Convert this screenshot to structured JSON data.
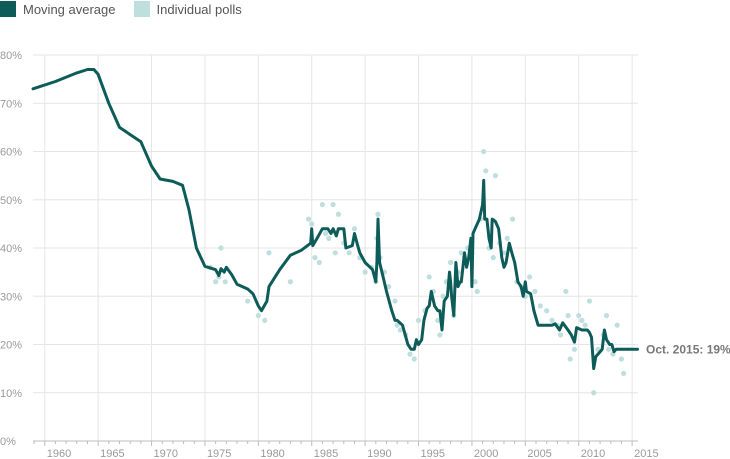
{
  "colors": {
    "line": "#0d5c5a",
    "points": "#bfdede",
    "grid": "#e6e6e6",
    "axis": "#bdbdbd",
    "tick_text": "#9a9a9a",
    "annotation": "#777777"
  },
  "chart_data": {
    "type": "line",
    "title": "",
    "xlabel": "",
    "ylabel": "",
    "xlim": [
      1958.9,
      1959.9
    ],
    "x_range": [
      1958.9,
      2015.5
    ],
    "ylim": [
      0,
      80
    ],
    "grid": true,
    "legend_placement": "top-left",
    "legend": [
      {
        "label": "Moving average",
        "color": "#0d5c5a"
      },
      {
        "label": "Individual polls",
        "color": "#bfdede"
      }
    ],
    "x_tick_labels": [
      "1960",
      "1965",
      "1970",
      "1975",
      "1980",
      "1985",
      "1990",
      "1995",
      "2000",
      "2005",
      "2010",
      "2015"
    ],
    "x_ticks": [
      1960,
      1965,
      1970,
      1975,
      1980,
      1985,
      1990,
      1995,
      2000,
      2005,
      2010,
      2015
    ],
    "y_tick_labels": [
      "0%",
      "10%",
      "20%",
      "30%",
      "40%",
      "50%",
      "60%",
      "70%",
      "80%"
    ],
    "y_ticks": [
      0,
      10,
      20,
      30,
      40,
      50,
      60,
      70,
      80
    ],
    "annotation": {
      "text": "Oct. 2015: 19%",
      "x": 2015.8,
      "y": 19
    },
    "series": [
      {
        "name": "Moving average",
        "points": [
          [
            1958.9,
            73
          ],
          [
            1961,
            74.5
          ],
          [
            1963,
            76.3
          ],
          [
            1964,
            77
          ],
          [
            1964.6,
            77
          ],
          [
            1965,
            76
          ],
          [
            1966,
            70
          ],
          [
            1967,
            65
          ],
          [
            1968,
            63.5
          ],
          [
            1969,
            62
          ],
          [
            1970,
            57
          ],
          [
            1970.8,
            54.3
          ],
          [
            1972,
            53.8
          ],
          [
            1972.9,
            53
          ],
          [
            1973.5,
            48
          ],
          [
            1974.2,
            40
          ],
          [
            1975,
            36.2
          ],
          [
            1976,
            35.5
          ],
          [
            1976.3,
            34.3
          ],
          [
            1976.5,
            35.7
          ],
          [
            1976.8,
            35
          ],
          [
            1977,
            36
          ],
          [
            1977.5,
            34.5
          ],
          [
            1978,
            32.5
          ],
          [
            1979,
            31.5
          ],
          [
            1979.5,
            30.5
          ],
          [
            1980,
            28
          ],
          [
            1980.3,
            27
          ],
          [
            1980.8,
            29
          ],
          [
            1981,
            32
          ],
          [
            1982,
            35.5
          ],
          [
            1983,
            38.5
          ],
          [
            1984,
            39.5
          ],
          [
            1984.9,
            41
          ],
          [
            1985,
            44
          ],
          [
            1985.1,
            40.5
          ],
          [
            1985.5,
            42
          ],
          [
            1986,
            44
          ],
          [
            1986.5,
            44
          ],
          [
            1986.8,
            43
          ],
          [
            1987,
            44
          ],
          [
            1987.3,
            42.5
          ],
          [
            1987.5,
            44
          ],
          [
            1988,
            44
          ],
          [
            1988.2,
            40
          ],
          [
            1988.8,
            40.5
          ],
          [
            1989,
            43
          ],
          [
            1989.3,
            40.5
          ],
          [
            1989.5,
            39
          ],
          [
            1990,
            37
          ],
          [
            1990.7,
            35.5
          ],
          [
            1991,
            33
          ],
          [
            1991.1,
            37
          ],
          [
            1991.2,
            46
          ],
          [
            1991.35,
            37
          ],
          [
            1991.6,
            34.8
          ],
          [
            1992,
            31
          ],
          [
            1992.5,
            27
          ],
          [
            1992.8,
            25
          ],
          [
            1993,
            25
          ],
          [
            1993.5,
            24
          ],
          [
            1994,
            20
          ],
          [
            1994.3,
            19
          ],
          [
            1994.6,
            19
          ],
          [
            1994.8,
            21
          ],
          [
            1995,
            20
          ],
          [
            1995.3,
            21
          ],
          [
            1995.5,
            25
          ],
          [
            1995.8,
            27.5
          ],
          [
            1996,
            28
          ],
          [
            1996.2,
            31
          ],
          [
            1996.5,
            28
          ],
          [
            1996.8,
            27
          ],
          [
            1997,
            27
          ],
          [
            1997.2,
            23
          ],
          [
            1997.4,
            29
          ],
          [
            1997.7,
            30
          ],
          [
            1997.9,
            35
          ],
          [
            1998,
            33
          ],
          [
            1998.1,
            30
          ],
          [
            1998.3,
            26
          ],
          [
            1998.5,
            37
          ],
          [
            1998.7,
            32
          ],
          [
            1998.9,
            33
          ],
          [
            1999,
            33
          ],
          [
            1999.3,
            39
          ],
          [
            1999.5,
            36
          ],
          [
            1999.7,
            38
          ],
          [
            1999.9,
            42
          ],
          [
            2000,
            32
          ],
          [
            2000.1,
            43
          ],
          [
            2000.3,
            44
          ],
          [
            2000.7,
            46
          ],
          [
            2001,
            49
          ],
          [
            2001.1,
            54
          ],
          [
            2001.2,
            46
          ],
          [
            2001.4,
            46
          ],
          [
            2001.6,
            42
          ],
          [
            2001.8,
            40
          ],
          [
            2001.9,
            46
          ],
          [
            2002.2,
            45.5
          ],
          [
            2002.5,
            44
          ],
          [
            2002.8,
            38
          ],
          [
            2003,
            36
          ],
          [
            2003.2,
            37
          ],
          [
            2003.5,
            41
          ],
          [
            2003.8,
            38.5
          ],
          [
            2004,
            37
          ],
          [
            2004.3,
            33
          ],
          [
            2004.6,
            32
          ],
          [
            2004.8,
            30
          ],
          [
            2005,
            33
          ],
          [
            2005.1,
            31
          ],
          [
            2005.5,
            30.5
          ],
          [
            2005.8,
            27
          ],
          [
            2006.2,
            24
          ],
          [
            2006.8,
            24
          ],
          [
            2007.5,
            24
          ],
          [
            2007.8,
            24.3
          ],
          [
            2008.2,
            23
          ],
          [
            2008.5,
            24.5
          ],
          [
            2009,
            23
          ],
          [
            2009.3,
            22
          ],
          [
            2009.6,
            20.5
          ],
          [
            2009.8,
            23.5
          ],
          [
            2010.3,
            23
          ],
          [
            2010.8,
            23
          ],
          [
            2011,
            22.5
          ],
          [
            2011.2,
            21.5
          ],
          [
            2011.4,
            15
          ],
          [
            2011.6,
            17.5
          ],
          [
            2012,
            18.5
          ],
          [
            2012.2,
            19
          ],
          [
            2012.4,
            23
          ],
          [
            2012.6,
            21
          ],
          [
            2012.9,
            20
          ],
          [
            2013.1,
            20
          ],
          [
            2013.3,
            18.5
          ],
          [
            2013.5,
            19
          ],
          [
            2014,
            19
          ],
          [
            2014.5,
            19
          ],
          [
            2015,
            19
          ],
          [
            2015.5,
            19
          ]
        ]
      },
      {
        "name": "Individual polls",
        "points": [
          [
            1975.5,
            36
          ],
          [
            1976,
            33
          ],
          [
            1976.3,
            34
          ],
          [
            1976.5,
            40
          ],
          [
            1976.9,
            33
          ],
          [
            1979,
            29
          ],
          [
            1980,
            26
          ],
          [
            1980.6,
            25
          ],
          [
            1981,
            39
          ],
          [
            1983,
            33
          ],
          [
            1984.7,
            46
          ],
          [
            1985,
            45
          ],
          [
            1985.3,
            38
          ],
          [
            1985.7,
            37
          ],
          [
            1986,
            49
          ],
          [
            1986.3,
            43
          ],
          [
            1986.6,
            42
          ],
          [
            1987,
            49
          ],
          [
            1987.2,
            39
          ],
          [
            1987.5,
            47
          ],
          [
            1988,
            41
          ],
          [
            1988.5,
            39
          ],
          [
            1989,
            44
          ],
          [
            1989.5,
            38
          ],
          [
            1990,
            35
          ],
          [
            1990.6,
            36
          ],
          [
            1991,
            33
          ],
          [
            1991.1,
            42
          ],
          [
            1991.2,
            47
          ],
          [
            1991.4,
            38
          ],
          [
            1991.8,
            35
          ],
          [
            1992.2,
            32
          ],
          [
            1992.8,
            29
          ],
          [
            1993,
            24
          ],
          [
            1993.3,
            23
          ],
          [
            1993.8,
            22
          ],
          [
            1994.2,
            18
          ],
          [
            1994.6,
            17
          ],
          [
            1995,
            25
          ],
          [
            1995.6,
            27
          ],
          [
            1996,
            34
          ],
          [
            1996.4,
            31
          ],
          [
            1996.8,
            25
          ],
          [
            1997,
            22
          ],
          [
            1997.3,
            30
          ],
          [
            1997.6,
            33
          ],
          [
            1998,
            37
          ],
          [
            1998.3,
            26
          ],
          [
            1998.7,
            35
          ],
          [
            1999,
            39
          ],
          [
            1999.3,
            38
          ],
          [
            1999.6,
            40
          ],
          [
            2000,
            39
          ],
          [
            2000.3,
            33
          ],
          [
            2000.5,
            31
          ],
          [
            2000.8,
            46
          ],
          [
            2001.1,
            60
          ],
          [
            2001.3,
            56
          ],
          [
            2001.6,
            40
          ],
          [
            2002,
            38
          ],
          [
            2002.2,
            55
          ],
          [
            2002.6,
            41
          ],
          [
            2003,
            39
          ],
          [
            2003.3,
            42
          ],
          [
            2003.8,
            46
          ],
          [
            2004.2,
            33
          ],
          [
            2004.6,
            32
          ],
          [
            2005,
            30
          ],
          [
            2005.4,
            34
          ],
          [
            2005.9,
            31
          ],
          [
            2006.4,
            28
          ],
          [
            2007,
            27
          ],
          [
            2007.5,
            25
          ],
          [
            2008,
            24
          ],
          [
            2008.3,
            22
          ],
          [
            2008.8,
            31
          ],
          [
            2009,
            26
          ],
          [
            2009.2,
            17
          ],
          [
            2009.6,
            19
          ],
          [
            2010,
            26
          ],
          [
            2010.3,
            25
          ],
          [
            2010.6,
            24
          ],
          [
            2011,
            29
          ],
          [
            2011.4,
            10
          ],
          [
            2011.8,
            19
          ],
          [
            2012.3,
            22
          ],
          [
            2012.6,
            26
          ],
          [
            2012.8,
            19
          ],
          [
            2013.2,
            18
          ],
          [
            2013.6,
            24
          ],
          [
            2014,
            17
          ],
          [
            2014.2,
            14
          ]
        ]
      }
    ]
  }
}
